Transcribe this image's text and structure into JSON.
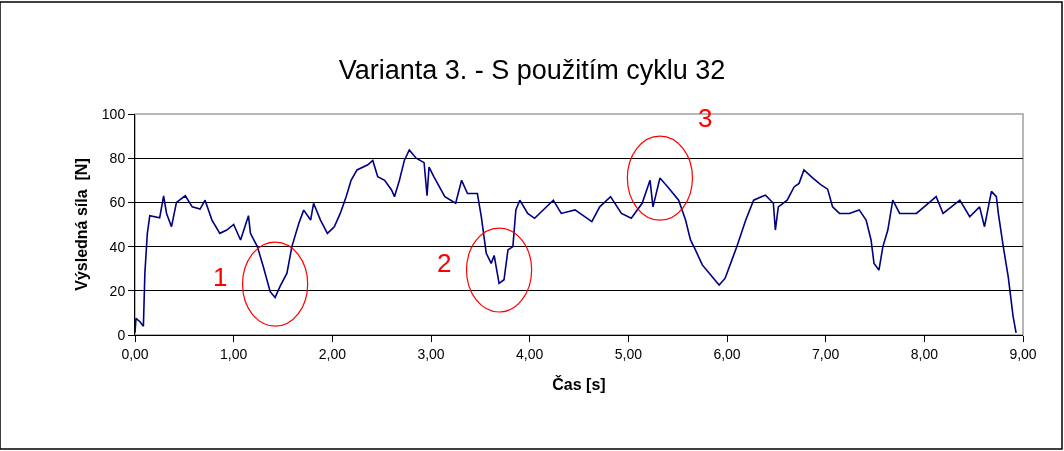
{
  "chart_data": {
    "type": "line",
    "title": "Varianta 3. - S použitím cyklu 32",
    "xlabel": "Čas [s]",
    "ylabel": "Výsledná síla  [N]",
    "x": [
      0,
      0.01,
      0.05,
      0.085,
      0.1,
      0.125,
      0.15,
      0.25,
      0.29,
      0.32,
      0.37,
      0.42,
      0.51,
      0.58,
      0.66,
      0.71,
      0.78,
      0.86,
      0.93,
      1.0,
      1.07,
      1.15,
      1.17,
      1.24,
      1.3,
      1.37,
      1.42,
      1.47,
      1.54,
      1.59,
      1.66,
      1.71,
      1.78,
      1.81,
      1.88,
      1.95,
      2.02,
      2.08,
      2.14,
      2.19,
      2.25,
      2.36,
      2.41,
      2.46,
      2.53,
      2.6,
      2.63,
      2.68,
      2.73,
      2.78,
      2.85,
      2.93,
      2.96,
      2.98,
      3.03,
      3.14,
      3.25,
      3.31,
      3.37,
      3.47,
      3.51,
      3.56,
      3.61,
      3.64,
      3.69,
      3.74,
      3.78,
      3.83,
      3.86,
      3.9,
      3.98,
      4.05,
      4.24,
      4.32,
      4.46,
      4.63,
      4.71,
      4.82,
      4.93,
      5.03,
      5.14,
      5.22,
      5.25,
      5.32,
      5.4,
      5.51,
      5.58,
      5.63,
      5.68,
      5.75,
      5.85,
      5.92,
      5.98,
      6.05,
      6.1,
      6.19,
      6.27,
      6.39,
      6.47,
      6.49,
      6.52,
      6.61,
      6.68,
      6.73,
      6.78,
      6.87,
      6.95,
      7.02,
      7.07,
      7.14,
      7.24,
      7.34,
      7.41,
      7.46,
      7.49,
      7.54,
      7.58,
      7.63,
      7.68,
      7.75,
      7.92,
      8.12,
      8.19,
      8.36,
      8.46,
      8.56,
      8.61,
      8.68,
      8.73,
      8.75,
      8.8,
      8.85,
      8.9,
      8.93
    ],
    "series": [
      {
        "color": "#000080",
        "values": [
          1,
          7.5,
          6,
          4,
          28,
          46,
          54,
          53,
          63,
          55,
          49,
          60,
          63,
          58,
          57,
          61,
          52,
          46,
          47.5,
          50,
          43,
          54,
          46,
          40,
          31,
          19.6,
          17,
          22,
          28,
          40,
          50.5,
          56.5,
          52,
          59.6,
          52,
          46,
          49,
          55,
          62.6,
          70,
          74.7,
          77,
          79,
          71.6,
          70,
          65.6,
          62.6,
          70,
          79,
          83.7,
          80,
          78,
          63,
          76,
          71.6,
          62.6,
          59.6,
          70,
          64,
          64,
          53.5,
          37,
          32.4,
          36,
          23.4,
          25,
          38.5,
          40,
          56.6,
          61,
          55,
          52.8,
          61,
          55,
          56.6,
          51.3,
          58,
          62.6,
          55,
          52.8,
          59.6,
          70,
          58,
          71,
          67,
          61,
          52,
          43,
          38.5,
          31.7,
          26.4,
          22.6,
          25.6,
          34,
          40,
          52,
          61,
          63.3,
          59.6,
          47.5,
          58,
          61,
          67,
          68.6,
          74.7,
          71,
          68,
          66,
          58,
          55,
          55,
          56.6,
          52,
          43,
          32.4,
          29.4,
          40,
          47.5,
          61,
          55,
          55,
          62.6,
          55,
          61,
          53.5,
          58,
          49,
          65,
          62.6,
          55,
          40,
          26.4,
          8.3,
          1
        ]
      }
    ],
    "xlim": [
      0,
      9
    ],
    "ylim": [
      0,
      100
    ],
    "xticks": [
      {
        "value": 0,
        "label": "0,00"
      },
      {
        "value": 1,
        "label": "1,00"
      },
      {
        "value": 2,
        "label": "2,00"
      },
      {
        "value": 3,
        "label": "3,00"
      },
      {
        "value": 4,
        "label": "4,00"
      },
      {
        "value": 5,
        "label": "5,00"
      },
      {
        "value": 6,
        "label": "6,00"
      },
      {
        "value": 7,
        "label": "7,00"
      },
      {
        "value": 8,
        "label": "8,00"
      },
      {
        "value": 9,
        "label": "9,00"
      }
    ],
    "yticks": [
      0,
      20,
      40,
      60,
      80,
      100
    ],
    "grid": "y",
    "marker": "none",
    "line_style": "solid",
    "annotations": [
      {
        "text": "1",
        "x": 1.42,
        "y": 17
      },
      {
        "text": "2",
        "x": 3.69,
        "y": 23.4
      },
      {
        "text": "3",
        "x": 5.32,
        "y": 71
      }
    ]
  }
}
